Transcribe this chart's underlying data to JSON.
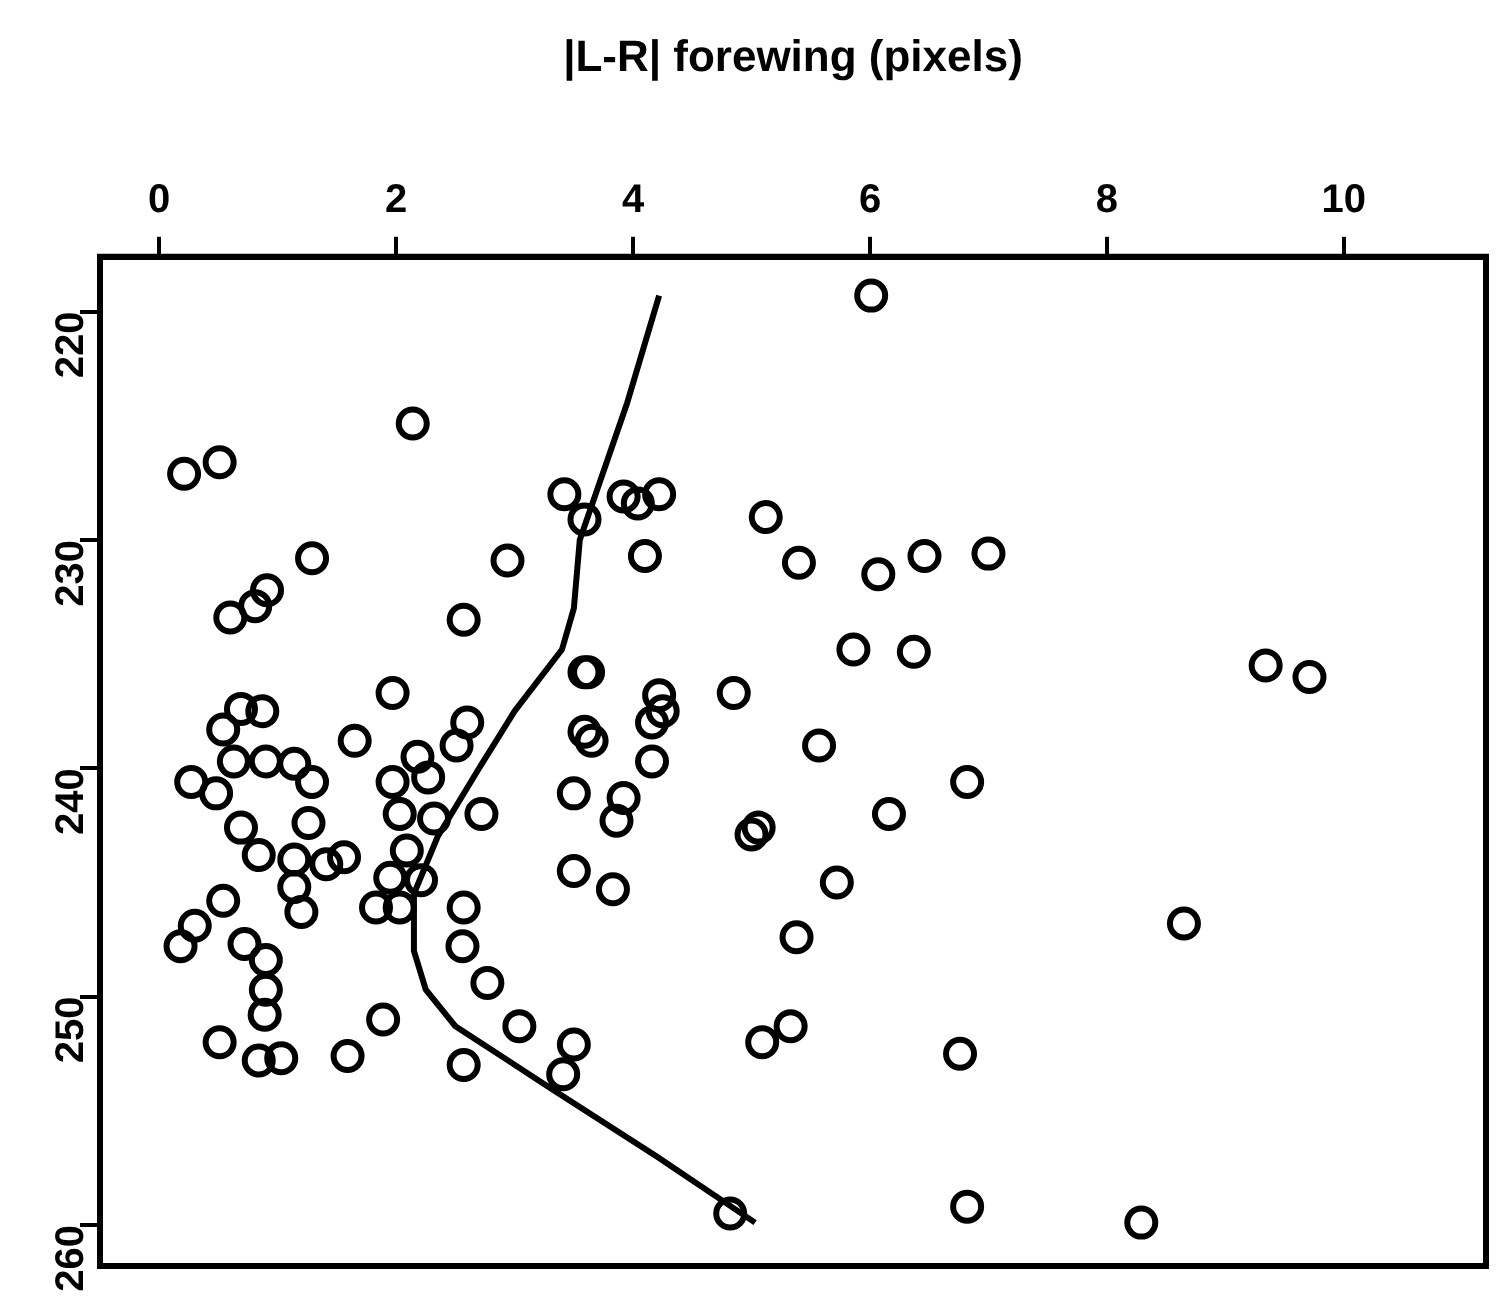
{
  "chart_data": {
    "type": "scatter",
    "xlabel": "|L-R| forewing (pixels)",
    "xlim": [
      -0.5,
      11.2
    ],
    "xticks": [
      0,
      2,
      4,
      6,
      8,
      10
    ],
    "ylim": [
      261.8,
      217.6
    ],
    "yticks": [
      220,
      230,
      240,
      250,
      260
    ],
    "grid": false,
    "legend": false,
    "marker": "circle",
    "series": [
      {
        "color": "#000000",
        "x": [
          6.01,
          2.14,
          0.21,
          0.51,
          1.29,
          0.91,
          0.81,
          0.6,
          2.57,
          2.94,
          3.42,
          3.59,
          3.92,
          4.04,
          4.22,
          4.1,
          5.12,
          1.97,
          3.59,
          3.62,
          4.22,
          4.25,
          4.16,
          4.85,
          0.69,
          0.87,
          0.54,
          1.65,
          2.6,
          2.51,
          3.59,
          3.65,
          4.16,
          0.63,
          0.9,
          1.14,
          1.29,
          0.27,
          0.48,
          1.97,
          2.27,
          2.18,
          2.72,
          2.03,
          2.32,
          0.69,
          1.26,
          0.84,
          1.14,
          1.41,
          1.56,
          1.14,
          1.2,
          0.54,
          2.09,
          1.95,
          2.21,
          1.83,
          2.03,
          2.57,
          3.5,
          3.92,
          3.86,
          3.5,
          3.83,
          0.3,
          0.18,
          0.72,
          0.9,
          0.9,
          0.89,
          2.56,
          2.77,
          1.89,
          3.04,
          0.51,
          0.84,
          1.03,
          1.59,
          2.57,
          3.5,
          3.41,
          4.82,
          5.4,
          6.07,
          6.46,
          7.0,
          5.86,
          6.37,
          9.34,
          9.71,
          5.57,
          5.06,
          5.0,
          6.16,
          6.82,
          5.72,
          5.38,
          8.65,
          5.33,
          5.09,
          6.76,
          6.82,
          8.29
        ],
        "values": [
          219.3,
          224.9,
          227.1,
          226.6,
          230.8,
          232.2,
          232.9,
          233.4,
          233.5,
          230.9,
          228.0,
          229.1,
          228.1,
          228.4,
          228.0,
          230.7,
          229.0,
          236.7,
          235.8,
          235.8,
          236.8,
          237.5,
          238.0,
          236.7,
          237.4,
          237.5,
          238.3,
          238.8,
          238.0,
          239.0,
          238.4,
          238.8,
          239.7,
          239.7,
          239.7,
          239.8,
          240.6,
          240.6,
          241.1,
          240.6,
          240.4,
          239.5,
          242.0,
          242.0,
          242.2,
          242.6,
          242.4,
          243.8,
          244.0,
          244.2,
          243.9,
          245.2,
          246.3,
          245.8,
          243.6,
          244.8,
          244.9,
          246.1,
          246.1,
          246.1,
          241.1,
          241.3,
          242.3,
          244.5,
          245.3,
          246.9,
          247.8,
          247.7,
          248.4,
          249.7,
          250.8,
          247.8,
          249.4,
          251.0,
          251.3,
          252.0,
          252.8,
          252.7,
          252.6,
          253.0,
          252.1,
          253.4,
          259.5,
          231.0,
          231.5,
          230.7,
          230.6,
          234.8,
          234.9,
          235.5,
          236.0,
          239.0,
          242.6,
          242.9,
          242.0,
          240.6,
          245.0,
          247.4,
          246.8,
          251.3,
          252.0,
          252.5,
          259.2,
          259.9
        ]
      },
      {
        "type": "line",
        "color": "#000000",
        "marker": "none",
        "line_style": "solid",
        "x": [
          4.22,
          3.95,
          3.65,
          3.55,
          3.5,
          3.4,
          3.0,
          2.7,
          2.35,
          2.15,
          2.15,
          2.25,
          2.5,
          3.3,
          4.2,
          5.03
        ],
        "values": [
          219.3,
          224,
          228.5,
          230,
          233,
          234.8,
          237.5,
          240,
          243,
          245.5,
          248,
          249.7,
          251.3,
          254,
          257,
          259.9
        ]
      }
    ]
  }
}
